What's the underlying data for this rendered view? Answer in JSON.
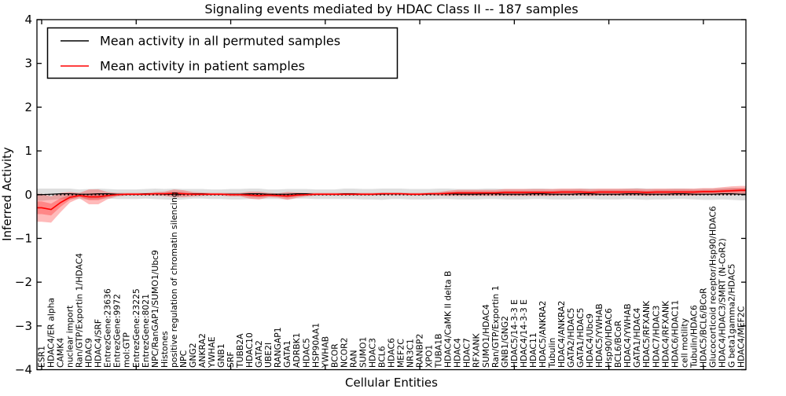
{
  "chart_data": {
    "type": "line",
    "title": "Signaling events mediated by HDAC Class II -- 187 samples",
    "xlabel": "Cellular Entities",
    "ylabel": "Inferred Activity",
    "ylim": [
      -4,
      4
    ],
    "yticks": [
      -4,
      -3,
      -2,
      -1,
      0,
      1,
      2,
      3,
      4
    ],
    "ytick_labels": [
      "−4",
      "−3",
      "−2",
      "−1",
      "0",
      "1",
      "2",
      "3",
      "4"
    ],
    "xtick_major_indices": [
      0,
      10,
      20,
      30,
      40,
      50,
      60,
      70
    ],
    "grid": false,
    "legend_position": "upper left",
    "zero_line": {
      "style": "dotted",
      "color": "#000000",
      "y": 0
    },
    "colors": {
      "permuted_line": "#000000",
      "permuted_band": "rgba(0,0,0,0.13)",
      "patient_line": "#ff0000",
      "patient_band": "rgba(255,0,0,0.27)"
    },
    "categories": [
      "ESR1",
      "HDAC4/ER alpha",
      "CAMK4",
      "nuclear import",
      "Ran/GTP/Exportin 1/HDAC4",
      "HDAC9",
      "HDAC4/SRF",
      "EntrezGene:23636",
      "EntrezGene:9972",
      "mol:GTP",
      "EntrezGene:23225",
      "EntrezGene:8021",
      "NPC/RanGAP1/SUMO1/Ubc9",
      "Histones",
      "positive regulation of chromatin silencing",
      "NPC",
      "GNG2",
      "ANKRA2",
      "YWHAE",
      "GNB1",
      "SRF",
      "TUBB2A",
      "HDAC10",
      "GATA2",
      "UBE2I",
      "RANGAP1",
      "GATA1",
      "ADRBK1",
      "HDAC5",
      "HSP90AA1",
      "YWHAB",
      "BCOR",
      "NCOR2",
      "RAN",
      "SUMO1",
      "HDAC3",
      "BCL6",
      "HDAC6",
      "MEF2C",
      "NR3C1",
      "RANBP2",
      "XPO1",
      "TUBA1B",
      "HDAC4/CaMK II delta B",
      "HDAC4",
      "HDAC7",
      "RFXANK",
      "SUMO1/HDAC4",
      "Ran/GTP/Exportin 1",
      "GNB1/GNG2",
      "HDAC5/14-3-3 E",
      "HDAC4/14-3-3 E",
      "HDAC11",
      "HDAC5/ANKRA2",
      "Tubulin",
      "HDAC4/ANKRA2",
      "GATA2/HDAC5",
      "GATA1/HDAC5",
      "HDAC4/Ubc9",
      "HDAC5/YWHAB",
      "Hsp90/HDAC6",
      "BCL6/BCoR",
      "HDAC4/YWHAB",
      "GATA1/HDAC4",
      "HDAC5/RFXANK",
      "HDAC7/HDAC3",
      "HDAC4/RFXANK",
      "HDAC6/HDAC11",
      "cell motility",
      "Tubulin/HDAC6",
      "HDAC5/BCL6/BCoR",
      "Glucocorticoid receptor/Hsp90/HDAC6",
      "HDAC4/HDAC3/SMRT (N-CoR2)",
      "G beta1gamma2/HDAC5",
      "HDAC4/MEF2C"
    ],
    "series": [
      {
        "name": "Mean activity in all permuted samples",
        "color": "#000000",
        "values": [
          0.0,
          0.01,
          0.02,
          0.02,
          0.01,
          0.01,
          0.02,
          0.02,
          0.01,
          0.01,
          0.01,
          0.02,
          0.02,
          0.01,
          0.01,
          0.01,
          0.02,
          0.02,
          0.01,
          0.01,
          0.01,
          0.01,
          0.02,
          0.02,
          0.01,
          0.01,
          0.01,
          0.02,
          0.02,
          0.01,
          0.01,
          0.01,
          0.02,
          0.02,
          0.01,
          0.01,
          0.01,
          0.02,
          0.02,
          0.01,
          0.01,
          0.01,
          0.02,
          0.02,
          0.01,
          0.01,
          0.01,
          0.02,
          0.02,
          0.01,
          0.01,
          0.01,
          0.02,
          0.02,
          0.01,
          0.01,
          0.01,
          0.02,
          0.02,
          0.01,
          0.01,
          0.01,
          0.02,
          0.02,
          0.01,
          0.01,
          0.01,
          0.02,
          0.02,
          0.01,
          0.01,
          0.01,
          0.02,
          0.02,
          0.01
        ],
        "band_halfwidth": [
          0.14,
          0.13,
          0.12,
          0.12,
          0.11,
          0.12,
          0.12,
          0.11,
          0.11,
          0.11,
          0.11,
          0.11,
          0.12,
          0.12,
          0.13,
          0.12,
          0.11,
          0.11,
          0.11,
          0.11,
          0.12,
          0.12,
          0.12,
          0.12,
          0.11,
          0.11,
          0.12,
          0.11,
          0.11,
          0.11,
          0.11,
          0.11,
          0.12,
          0.12,
          0.12,
          0.12,
          0.13,
          0.12,
          0.12,
          0.12,
          0.12,
          0.12,
          0.12,
          0.12,
          0.12,
          0.12,
          0.12,
          0.12,
          0.12,
          0.12,
          0.12,
          0.12,
          0.12,
          0.12,
          0.12,
          0.12,
          0.12,
          0.12,
          0.12,
          0.12,
          0.12,
          0.12,
          0.12,
          0.13,
          0.13,
          0.12,
          0.12,
          0.12,
          0.12,
          0.12,
          0.13,
          0.13,
          0.13,
          0.14,
          0.14
        ]
      },
      {
        "name": "Mean activity in patient samples",
        "color": "#ff0000",
        "values": [
          -0.3,
          -0.34,
          -0.18,
          -0.06,
          -0.02,
          -0.05,
          -0.05,
          -0.02,
          0.0,
          0.01,
          0.01,
          0.01,
          0.02,
          0.02,
          0.03,
          0.02,
          0.01,
          0.01,
          0.01,
          0.01,
          0.0,
          0.0,
          -0.01,
          -0.02,
          -0.01,
          -0.02,
          -0.03,
          -0.01,
          0.0,
          0.01,
          0.01,
          0.01,
          0.01,
          0.01,
          0.01,
          0.01,
          0.02,
          0.02,
          0.02,
          0.01,
          0.01,
          0.02,
          0.02,
          0.03,
          0.04,
          0.04,
          0.04,
          0.04,
          0.04,
          0.05,
          0.05,
          0.05,
          0.05,
          0.05,
          0.05,
          0.06,
          0.06,
          0.06,
          0.05,
          0.06,
          0.06,
          0.06,
          0.06,
          0.06,
          0.05,
          0.06,
          0.06,
          0.06,
          0.06,
          0.06,
          0.07,
          0.07,
          0.08,
          0.09,
          0.1
        ],
        "band_halfwidth": [
          0.32,
          0.3,
          0.22,
          0.12,
          0.06,
          0.17,
          0.17,
          0.08,
          0.04,
          0.03,
          0.03,
          0.03,
          0.04,
          0.05,
          0.09,
          0.08,
          0.05,
          0.04,
          0.03,
          0.03,
          0.04,
          0.04,
          0.08,
          0.09,
          0.05,
          0.05,
          0.09,
          0.06,
          0.04,
          0.03,
          0.03,
          0.03,
          0.03,
          0.03,
          0.03,
          0.03,
          0.03,
          0.03,
          0.03,
          0.03,
          0.03,
          0.03,
          0.04,
          0.06,
          0.07,
          0.07,
          0.07,
          0.07,
          0.07,
          0.08,
          0.08,
          0.08,
          0.08,
          0.08,
          0.08,
          0.08,
          0.08,
          0.08,
          0.08,
          0.08,
          0.08,
          0.08,
          0.08,
          0.08,
          0.08,
          0.08,
          0.08,
          0.08,
          0.08,
          0.08,
          0.08,
          0.08,
          0.09,
          0.1,
          0.1
        ]
      }
    ]
  }
}
